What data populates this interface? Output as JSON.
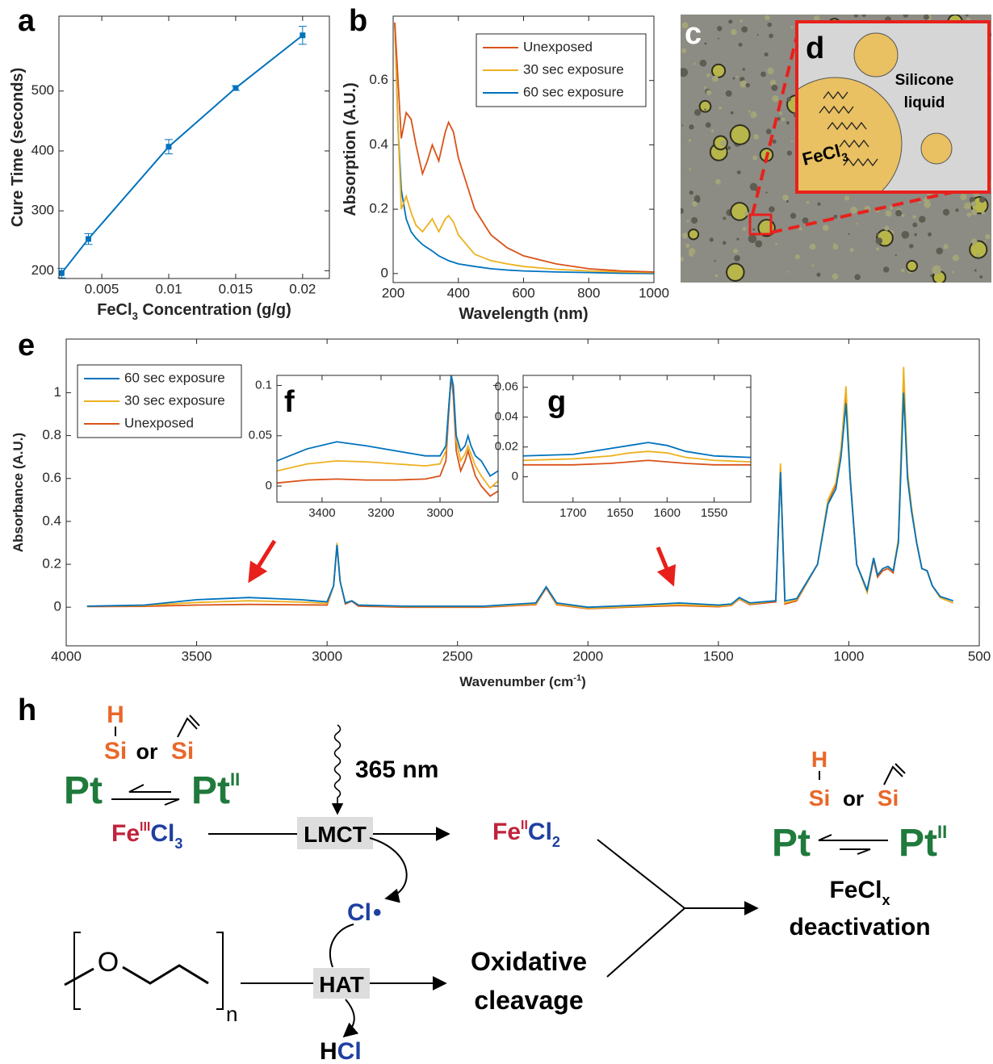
{
  "panels": {
    "a": "a",
    "b": "b",
    "c": "c",
    "d": "d",
    "e": "e",
    "f": "f",
    "g": "g",
    "h": "h"
  },
  "chart_data": [
    {
      "type": "line",
      "x_label": [
        "FeCl",
        "3",
        " Concentration (g/g)"
      ],
      "y_label": "Cure Time (seconds)",
      "x": [
        0.002,
        0.004,
        0.01,
        0.015,
        0.02
      ],
      "series": [
        {
          "color": "#0072bd",
          "values": [
            196,
            253,
            407,
            505,
            593
          ],
          "errors": [
            8,
            9,
            12,
            4,
            15
          ]
        }
      ],
      "xlim": [
        0.0018,
        0.022
      ],
      "ylim": [
        187,
        625
      ],
      "xticks": [
        0.005,
        0.01,
        0.015,
        0.02
      ],
      "yticks": [
        200,
        300,
        400,
        500
      ],
      "grid": false
    },
    {
      "type": "line",
      "x_label": "Wavelength (nm)",
      "y_label": "Absorption (A.U.)",
      "legend": "top-right",
      "x": [
        205,
        215,
        225,
        240,
        255,
        270,
        290,
        305,
        320,
        340,
        360,
        370,
        385,
        400,
        450,
        500,
        550,
        600,
        700,
        800,
        900,
        1000
      ],
      "series": [
        {
          "name": "Unexposed",
          "color": "#d95319",
          "values": [
            0.78,
            0.6,
            0.42,
            0.5,
            0.48,
            0.4,
            0.31,
            0.35,
            0.4,
            0.35,
            0.44,
            0.47,
            0.44,
            0.36,
            0.2,
            0.12,
            0.08,
            0.055,
            0.03,
            0.015,
            0.008,
            0.005
          ]
        },
        {
          "name": "30 sec exposure",
          "color": "#edb120",
          "values": [
            0.78,
            0.45,
            0.2,
            0.24,
            0.19,
            0.15,
            0.13,
            0.15,
            0.17,
            0.13,
            0.17,
            0.18,
            0.16,
            0.12,
            0.06,
            0.04,
            0.03,
            0.022,
            0.013,
            0.008,
            0.005,
            0.003
          ]
        },
        {
          "name": "60 sec exposure",
          "color": "#0072bd",
          "values": [
            0.78,
            0.45,
            0.26,
            0.17,
            0.13,
            0.11,
            0.09,
            0.08,
            0.07,
            0.055,
            0.045,
            0.04,
            0.035,
            0.03,
            0.022,
            0.015,
            0.011,
            0.008,
            0.005,
            0.003,
            0.001,
            0
          ]
        }
      ],
      "xlim": [
        200,
        1000
      ],
      "ylim": [
        -0.028,
        0.8
      ],
      "xticks": [
        200,
        400,
        600,
        800,
        1000
      ],
      "yticks": [
        0,
        0.2,
        0.4,
        0.6
      ],
      "grid": false
    },
    {
      "type": "line",
      "x_label": [
        "Wavenumber (cm",
        "-1",
        ")"
      ],
      "y_label": "Absorbance (A.U.)",
      "legend": "top-left",
      "x": [
        3920,
        3700,
        3500,
        3300,
        3100,
        3000,
        2975,
        2962,
        2950,
        2930,
        2905,
        2880,
        2700,
        2400,
        2200,
        2160,
        2120,
        2000,
        1800,
        1650,
        1500,
        1450,
        1420,
        1380,
        1280,
        1262,
        1245,
        1200,
        1120,
        1080,
        1050,
        1030,
        1011,
        995,
        970,
        930,
        905,
        890,
        870,
        850,
        830,
        810,
        790,
        775,
        760,
        740,
        720,
        700,
        680,
        650,
        600
      ],
      "series": [
        {
          "name": "60 sec exposure",
          "color": "#0072bd",
          "values": [
            0.005,
            0.01,
            0.035,
            0.045,
            0.035,
            0.025,
            0.1,
            0.29,
            0.12,
            0.02,
            0.03,
            0.01,
            0.005,
            0.005,
            0.02,
            0.095,
            0.02,
            0,
            0.01,
            0.02,
            0.01,
            0.015,
            0.045,
            0.02,
            0.03,
            0.63,
            0.03,
            0.04,
            0.2,
            0.48,
            0.55,
            0.7,
            0.95,
            0.6,
            0.2,
            0.08,
            0.23,
            0.15,
            0.18,
            0.19,
            0.17,
            0.3,
            1.0,
            0.6,
            0.45,
            0.3,
            0.18,
            0.17,
            0.1,
            0.05,
            0.03
          ]
        },
        {
          "name": "30 sec exposure",
          "color": "#edb120",
          "values": [
            0.005,
            0.008,
            0.022,
            0.03,
            0.024,
            0.018,
            0.1,
            0.3,
            0.12,
            0.02,
            0.03,
            0.01,
            0.003,
            0.003,
            0.015,
            0.095,
            0.015,
            -0.005,
            0.005,
            0.012,
            0.005,
            0.01,
            0.04,
            0.015,
            0.03,
            0.67,
            0.02,
            0.035,
            0.2,
            0.5,
            0.58,
            0.74,
            1.03,
            0.62,
            0.2,
            0.07,
            0.23,
            0.15,
            0.18,
            0.19,
            0.17,
            0.32,
            1.12,
            0.63,
            0.47,
            0.3,
            0.18,
            0.17,
            0.1,
            0.045,
            0.02
          ]
        },
        {
          "name": "Unexposed",
          "color": "#d95319",
          "values": [
            0.003,
            0.004,
            0.01,
            0.013,
            0.011,
            0.01,
            0.1,
            0.29,
            0.12,
            0.015,
            0.028,
            0.005,
            0,
            0,
            0.012,
            0.09,
            0.012,
            -0.007,
            0.002,
            0.008,
            0.002,
            0.008,
            0.038,
            0.012,
            0.025,
            0.65,
            0.015,
            0.03,
            0.2,
            0.49,
            0.57,
            0.72,
            1.0,
            0.61,
            0.2,
            0.07,
            0.22,
            0.14,
            0.17,
            0.18,
            0.16,
            0.31,
            1.08,
            0.62,
            0.46,
            0.3,
            0.18,
            0.17,
            0.1,
            0.045,
            0.02
          ]
        }
      ],
      "xlim": [
        4000,
        500
      ],
      "ylim": [
        -0.18,
        1.25
      ],
      "xticks": [
        4000,
        3500,
        3000,
        2500,
        2000,
        1500,
        1000,
        500
      ],
      "yticks": [
        0,
        0.2,
        0.4,
        0.6,
        0.8,
        1
      ],
      "grid": false
    },
    {
      "type": "line",
      "x": [
        3553,
        3450,
        3350,
        3250,
        3150,
        3050,
        3000,
        2980,
        2970,
        2962,
        2955,
        2945,
        2930,
        2915,
        2905,
        2895,
        2880,
        2860,
        2830,
        2803
      ],
      "series": [
        {
          "color": "#0072bd",
          "values": [
            0.025,
            0.037,
            0.044,
            0.04,
            0.035,
            0.03,
            0.03,
            0.04,
            0.08,
            0.11,
            0.1,
            0.05,
            0.035,
            0.04,
            0.05,
            0.04,
            0.03,
            0.025,
            0.01,
            0.015
          ]
        },
        {
          "color": "#edb120",
          "values": [
            0.015,
            0.022,
            0.025,
            0.024,
            0.022,
            0.02,
            0.022,
            0.035,
            0.08,
            0.11,
            0.1,
            0.045,
            0.025,
            0.032,
            0.04,
            0.032,
            0.02,
            0.01,
            -0.002,
            0.005
          ]
        },
        {
          "color": "#d95319",
          "values": [
            0.003,
            0.006,
            0.007,
            0.006,
            0.006,
            0.007,
            0.01,
            0.025,
            0.075,
            0.11,
            0.09,
            0.035,
            0.015,
            0.025,
            0.035,
            0.025,
            0.01,
            0,
            -0.01,
            -0.005
          ]
        }
      ],
      "xlim": [
        3553,
        2803
      ],
      "ylim": [
        -0.016,
        0.11
      ],
      "xticks": [
        3400,
        3200,
        3000
      ],
      "yticks": [
        0,
        0.05,
        0.1
      ],
      "grid": false
    },
    {
      "type": "line",
      "x": [
        1753,
        1700,
        1660,
        1640,
        1620,
        1600,
        1580,
        1550,
        1511
      ],
      "series": [
        {
          "color": "#0072bd",
          "values": [
            0.014,
            0.015,
            0.019,
            0.021,
            0.023,
            0.021,
            0.017,
            0.014,
            0.013
          ]
        },
        {
          "color": "#edb120",
          "values": [
            0.011,
            0.012,
            0.014,
            0.016,
            0.017,
            0.016,
            0.013,
            0.011,
            0.01
          ]
        },
        {
          "color": "#d95319",
          "values": [
            0.008,
            0.008,
            0.009,
            0.01,
            0.011,
            0.01,
            0.009,
            0.008,
            0.008
          ]
        }
      ],
      "xlim": [
        1753,
        1511
      ],
      "ylim": [
        -0.017,
        0.068
      ],
      "xticks": [
        1700,
        1650,
        1600,
        1550
      ],
      "yticks": [
        0,
        0.02,
        0.04,
        0.06
      ],
      "grid": false
    }
  ],
  "micrograph": {
    "silicone": [
      "Silicone",
      "liquid"
    ],
    "fecl": [
      "FeCl",
      "3"
    ]
  },
  "scheme": {
    "left": {
      "h": "H",
      "si_h": "Si",
      "or": "or",
      "si_v": "Si",
      "pt": "Pt",
      "pt2": "Pt",
      "ox2": "II"
    },
    "fe3": [
      "Fe",
      "III",
      "Cl",
      "3"
    ],
    "light": "365 nm",
    "lmct": "LMCT",
    "fe2": [
      "Fe",
      "II",
      "Cl",
      "2"
    ],
    "radical": [
      "Cl",
      "•"
    ],
    "hat": "HAT",
    "monomer_o": "O",
    "repeat": "n",
    "cleavage": [
      "Oxidative",
      "cleavage"
    ],
    "hcl": [
      "H",
      "Cl"
    ],
    "right": {
      "h": "H",
      "si_h": "Si",
      "or": "or",
      "si_v": "Si",
      "pt": "Pt",
      "pt2": "Pt",
      "ox2": "II",
      "fecl": [
        "FeCl",
        "x"
      ],
      "deactivation": "deactivation"
    }
  }
}
